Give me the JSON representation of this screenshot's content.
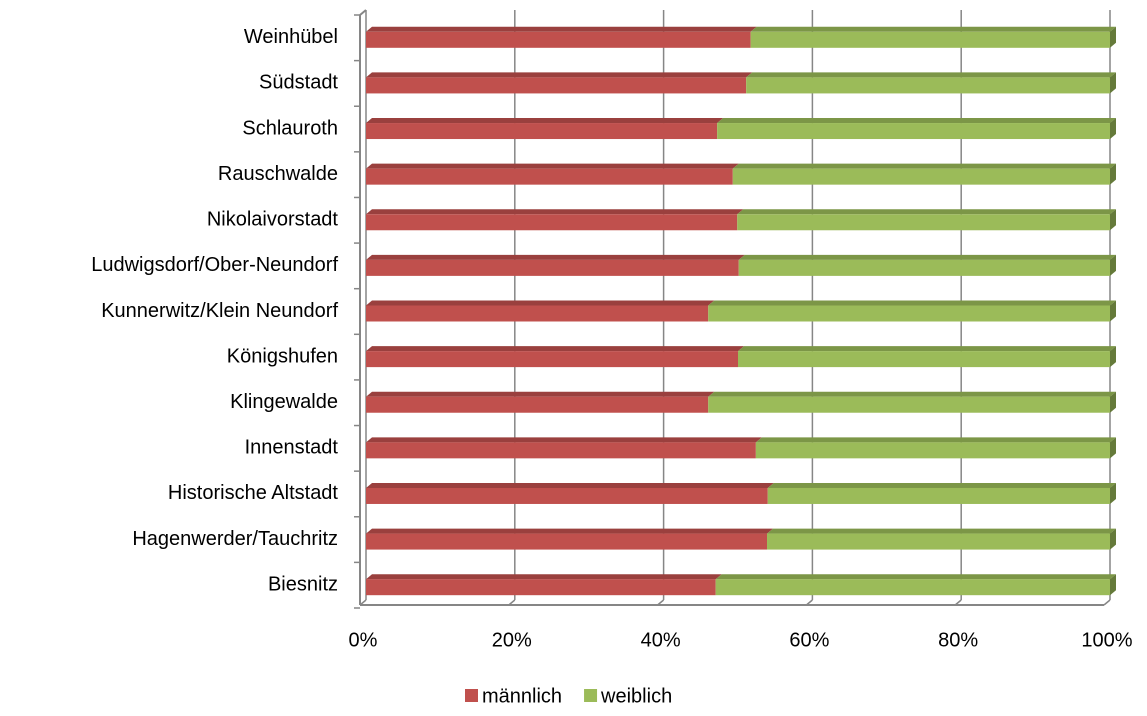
{
  "chart_data": {
    "type": "stacked-bar-100",
    "categories": [
      "Weinhübel",
      "Südstadt",
      "Schlauroth",
      "Rauschwalde",
      "Nikolaivorstadt",
      "Ludwigsdorf/Ober-Neundorf",
      "Kunnerwitz/Klein Neundorf",
      "Königshufen",
      "Klingewalde",
      "Innenstadt ",
      "Historische Altstadt",
      "Hagenwerder/Tauchritz",
      "Biesnitz"
    ],
    "series": [
      {
        "name": "männlich",
        "color": "#c0504d",
        "values": [
          51.7,
          51.1,
          47.2,
          49.3,
          49.9,
          50.1,
          46.0,
          50.0,
          46.0,
          52.4,
          54.0,
          53.9,
          47.0
        ]
      },
      {
        "name": "weiblich",
        "color": "#9bbb59",
        "values": [
          48.3,
          48.9,
          52.8,
          50.7,
          50.1,
          49.9,
          54.0,
          50.0,
          54.0,
          47.6,
          46.0,
          46.1,
          53.0
        ]
      }
    ],
    "xlim": [
      0,
      100
    ],
    "xticks": [
      {
        "value": 0,
        "label": "0%"
      },
      {
        "value": 20,
        "label": "20%"
      },
      {
        "value": 40,
        "label": "40%"
      },
      {
        "value": 60,
        "label": "60%"
      },
      {
        "value": 80,
        "label": "80%"
      },
      {
        "value": 100,
        "label": "100%"
      }
    ],
    "grid": true,
    "legend": "bottom"
  }
}
